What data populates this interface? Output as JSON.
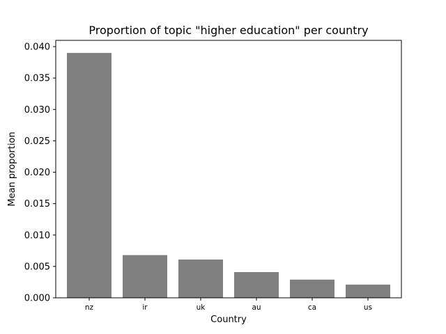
{
  "chart_data": {
    "type": "bar",
    "title": "Proportion of topic \"higher education\" per country",
    "xlabel": "Country",
    "ylabel": "Mean proportion",
    "categories": [
      "nz",
      "ir",
      "uk",
      "au",
      "ca",
      "us"
    ],
    "values": [
      0.039,
      0.0068,
      0.0061,
      0.0041,
      0.0029,
      0.0021
    ],
    "ylim": [
      0,
      0.041
    ],
    "yticks": [
      "0.000",
      "0.005",
      "0.010",
      "0.015",
      "0.020",
      "0.025",
      "0.030",
      "0.035",
      "0.040"
    ],
    "bar_color": "#808080",
    "grid": false
  }
}
